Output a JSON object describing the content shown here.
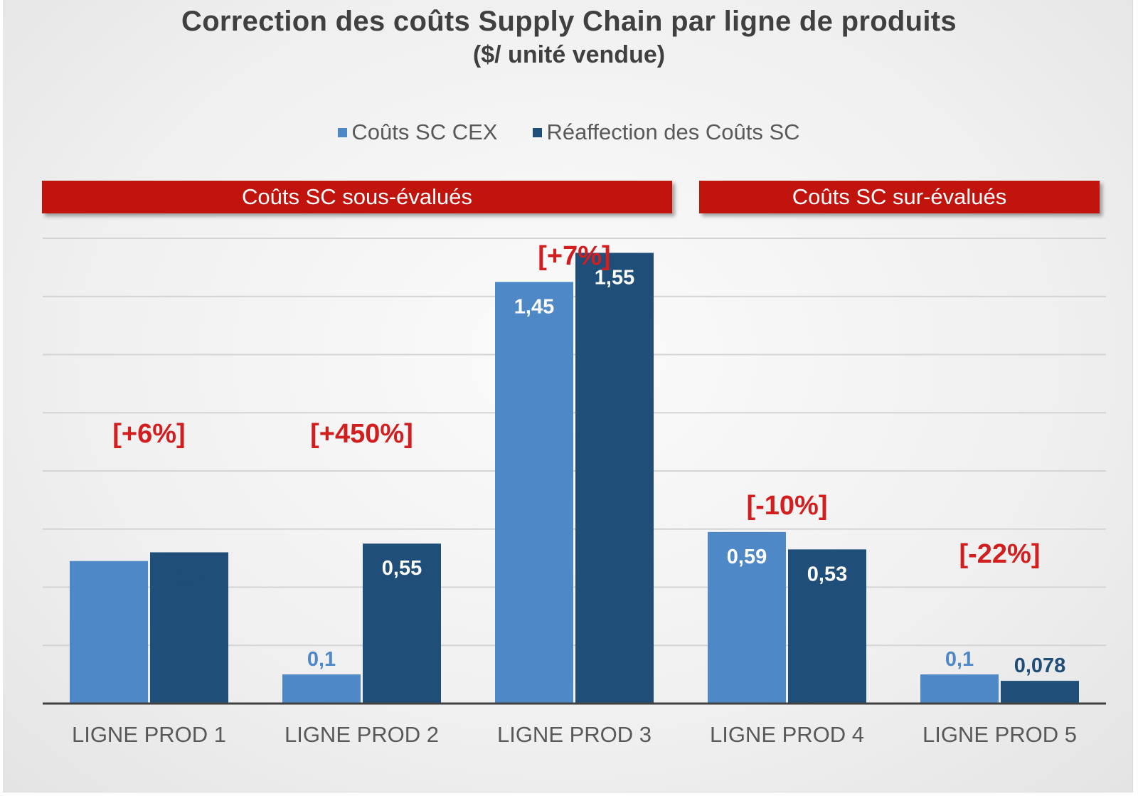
{
  "colors": {
    "series_cex": "#4e88c7",
    "series_realloc": "#1f4e79",
    "banner": "#c0140c",
    "pct_text": "#d21e1e",
    "grid": "#d4d4d4",
    "axis": "#404040"
  },
  "banners": {
    "under": "Coûts SC sous-évalués",
    "over": "Coûts SC sur-évalués"
  },
  "chart_data": {
    "type": "bar",
    "title": "Correction des coûts Supply Chain par ligne de produits",
    "subtitle": "($/ unité vendue)",
    "categories": [
      "LIGNE PROD 1",
      "LIGNE PROD 2",
      "LIGNE PROD 3",
      "LIGNE PROD 4",
      "LIGNE PROD 5"
    ],
    "series": [
      {
        "name": "Coûts SC CEX",
        "values": [
          0.49,
          0.1,
          1.45,
          0.59,
          0.1
        ],
        "labels": [
          "0,49",
          "0,1",
          "1,45",
          "0,59",
          "0,1"
        ]
      },
      {
        "name": "Réaffection des Coûts SC",
        "values": [
          0.52,
          0.55,
          1.55,
          0.53,
          0.078
        ],
        "labels": [
          "0,52",
          "0,55",
          "1,55",
          "0,53",
          "0,078"
        ]
      }
    ],
    "variations": [
      "[+6%]",
      "[+450%]",
      "[+7%]",
      "[-10%]",
      "[-22%]"
    ],
    "ylim": [
      0,
      1.6
    ],
    "grid": true,
    "legend_position": "top"
  }
}
